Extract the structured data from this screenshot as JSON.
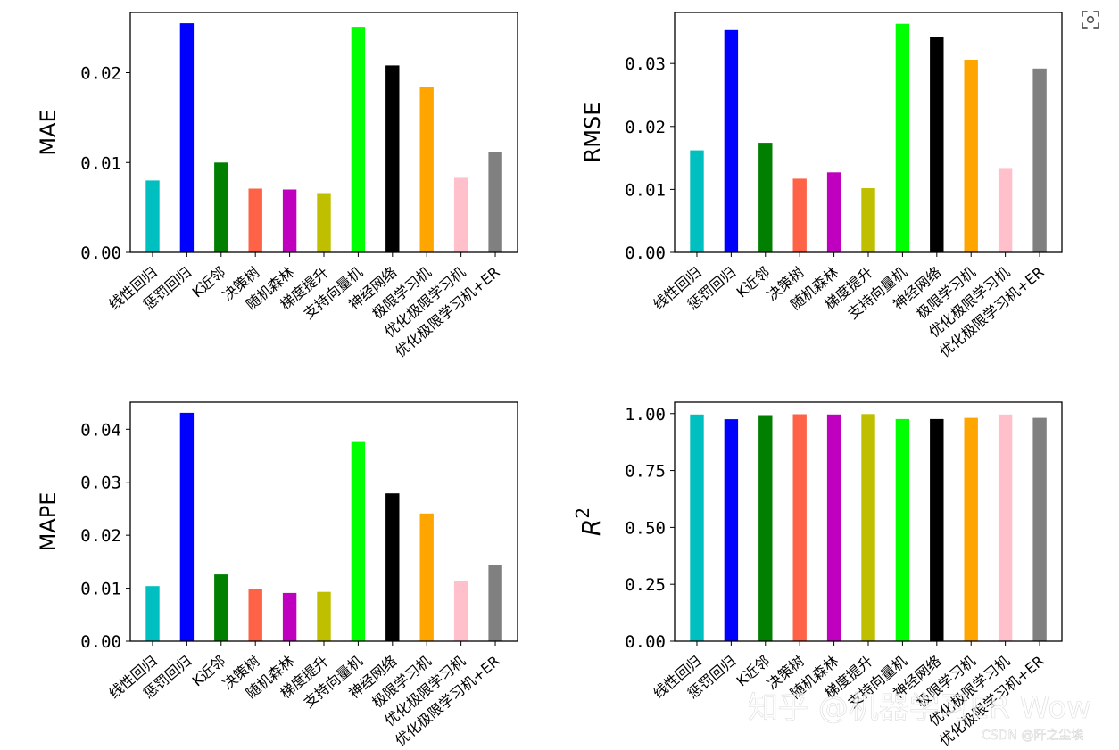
{
  "chart_data": [
    {
      "type": "bar",
      "ylabel": "MAE",
      "categories": [
        "线性回归",
        "惩罚回归",
        "K近邻",
        "决策树",
        "随机森林",
        "梯度提升",
        "支持向量机",
        "神经网络",
        "极限学习机",
        "优化极限学习机",
        "优化极限学习机+ER"
      ],
      "values": [
        0.008,
        0.0255,
        0.01,
        0.0071,
        0.007,
        0.0066,
        0.0251,
        0.0208,
        0.0184,
        0.0083,
        0.0112
      ],
      "ylim": [
        0,
        0.0267
      ],
      "yticks": [
        0,
        0.01,
        0.02
      ],
      "ytick_labels": [
        "0.00",
        "0.01",
        "0.02"
      ]
    },
    {
      "type": "bar",
      "ylabel": "RMSE",
      "categories": [
        "线性回归",
        "惩罚回归",
        "K近邻",
        "决策树",
        "随机森林",
        "梯度提升",
        "支持向量机",
        "神经网络",
        "极限学习机",
        "优化极限学习机",
        "优化极限学习机+ER"
      ],
      "values": [
        0.0162,
        0.0353,
        0.0174,
        0.0117,
        0.0127,
        0.0102,
        0.0363,
        0.0342,
        0.0306,
        0.0134,
        0.0292
      ],
      "ylim": [
        0,
        0.0381
      ],
      "yticks": [
        0,
        0.01,
        0.02,
        0.03
      ],
      "ytick_labels": [
        "0.00",
        "0.01",
        "0.02",
        "0.03"
      ]
    },
    {
      "type": "bar",
      "ylabel": "MAPE",
      "categories": [
        "线性回归",
        "惩罚回归",
        "K近邻",
        "决策树",
        "随机森林",
        "梯度提升",
        "支持向量机",
        "神经网络",
        "极限学习机",
        "优化极限学习机",
        "优化极限学习机+ER"
      ],
      "values": [
        0.0104,
        0.0431,
        0.0126,
        0.0098,
        0.0091,
        0.0093,
        0.0376,
        0.0279,
        0.0241,
        0.0113,
        0.0143
      ],
      "ylim": [
        0,
        0.0451
      ],
      "yticks": [
        0,
        0.01,
        0.02,
        0.03,
        0.04
      ],
      "ytick_labels": [
        "0.00",
        "0.01",
        "0.02",
        "0.03",
        "0.04"
      ]
    },
    {
      "type": "bar",
      "ylabel": "R2",
      "categories": [
        "线性回归",
        "惩罚回归",
        "K近邻",
        "决策树",
        "随机森林",
        "梯度提升",
        "支持向量机",
        "神经网络",
        "极限学习机",
        "优化极限学习机",
        "优化极限学习机+ER"
      ],
      "values": [
        0.996,
        0.975,
        0.993,
        0.997,
        0.996,
        0.998,
        0.976,
        0.976,
        0.981,
        0.996,
        0.981
      ],
      "ylim": [
        0,
        1.05
      ],
      "yticks": [
        0,
        0.25,
        0.5,
        0.75,
        1.0
      ],
      "ytick_labels": [
        "0.00",
        "0.25",
        "0.50",
        "0.75",
        "1.00"
      ]
    }
  ],
  "bar_colors": [
    "#00bfc0",
    "#0000ff",
    "#007f00",
    "#ff6347",
    "#bf00bf",
    "#bfbf00",
    "#00ff00",
    "#000000",
    "#ffa500",
    "#ffc0cb",
    "#808080"
  ],
  "watermark": {
    "main": "知乎 @机器学习ER Wow",
    "small": "CSDN @阡之尘埃"
  },
  "corner_icon": "scan-icon"
}
